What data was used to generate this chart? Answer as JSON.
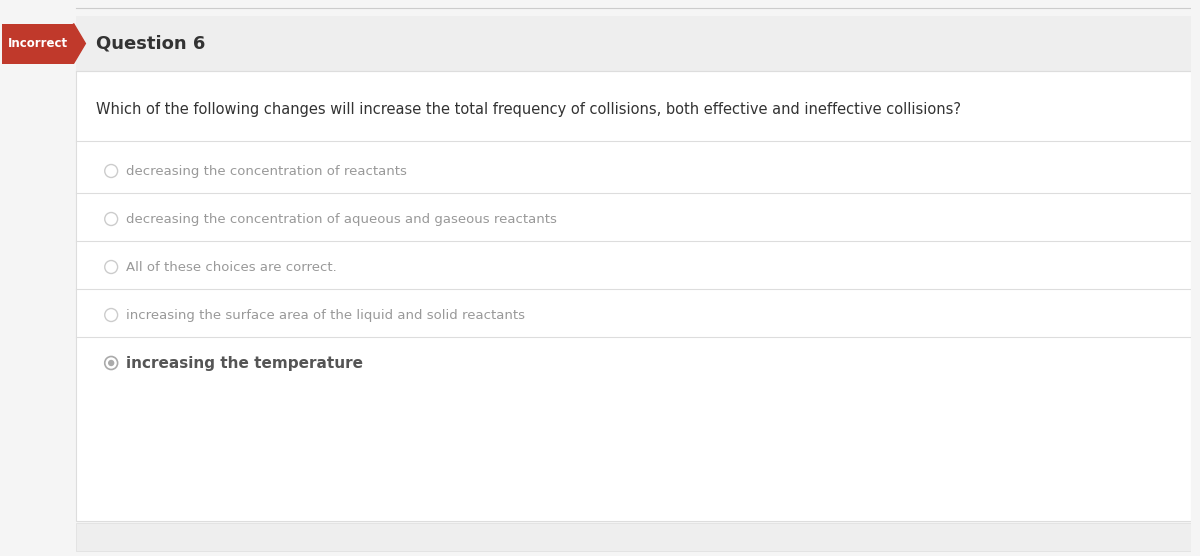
{
  "title": "Question 6",
  "incorrect_label": "Incorrect",
  "question": "Which of the following changes will increase the total frequency of collisions, both effective and ineffective collisions?",
  "choices": [
    "decreasing the concentration of reactants",
    "decreasing the concentration of aqueous and gaseous reactants",
    "All of these choices are correct.",
    "increasing the surface area of the liquid and solid reactants",
    "increasing the temperature"
  ],
  "selected_index": 4,
  "bg_color": "#f5f5f5",
  "header_bg": "#eeeeee",
  "card_bg": "#ffffff",
  "incorrect_bg": "#c0392b",
  "incorrect_text": "#ffffff",
  "title_color": "#333333",
  "question_color": "#333333",
  "choice_color": "#999999",
  "selected_choice_color": "#555555",
  "divider_color": "#dddddd",
  "radio_color": "#aaaaaa",
  "selected_radio_color": "#aaaaaa",
  "top_border_color": "#cccccc",
  "figsize": [
    12.0,
    5.56
  ],
  "dpi": 100
}
